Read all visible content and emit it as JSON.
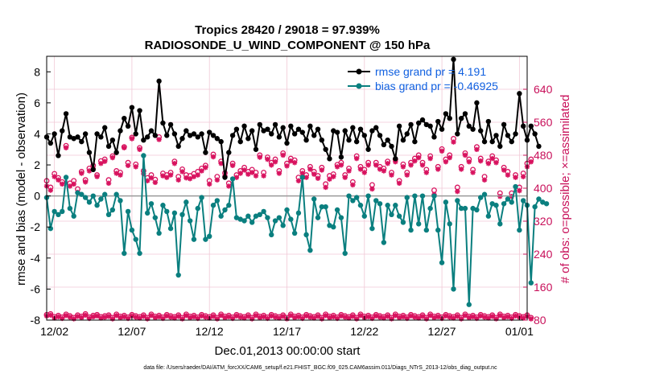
{
  "chart_data": {
    "type": "line",
    "title": "Tropics 28420 / 29018 = 97.939%",
    "subtitle": "RADIOSONDE_U_WIND_COMPONENT @ 150 hPa",
    "xlabel": "Dec.01,2013 00:00:00 start",
    "ylabel": "rmse and bias (model - observation)",
    "ylabel_right": "# of obs: o=possible; ×=assimilated",
    "footer": "data file: /Users/raeder/DAI/ATM_forcXX/CAM6_setup/f.e21.FHIST_BGC.f09_025.CAM6assim.011/Diags_NTrS_2013-12/obs_diag_output.nc",
    "xlim": [
      0,
      124
    ],
    "ylim": [
      -8,
      9
    ],
    "ylim_right": [
      80,
      720
    ],
    "x_ticks": [
      2,
      22,
      42,
      62,
      82,
      102,
      122
    ],
    "x_tick_labels": [
      "12/02",
      "12/07",
      "12/12",
      "12/17",
      "12/22",
      "12/27",
      "01/01"
    ],
    "y_ticks": [
      -8,
      -6,
      -4,
      -2,
      0,
      2,
      4,
      6,
      8
    ],
    "y_tick_labels": [
      "-8",
      "-6",
      "-4",
      "-2",
      "0",
      "2",
      "4",
      "6",
      "8"
    ],
    "y_right_ticks": [
      80,
      160,
      240,
      320,
      400,
      480,
      560,
      640
    ],
    "y_right_tick_labels": [
      "80",
      "160",
      "240",
      "320",
      "400",
      "480",
      "560",
      "640"
    ],
    "grid": true,
    "legend_position": "top-right",
    "series": [
      {
        "name": "rmse grand pr = 4.191",
        "color": "#000000",
        "values": [
          3.8,
          3.4,
          4.0,
          2.6,
          4.2,
          5.3,
          3.8,
          3.7,
          3.8,
          3.5,
          4.0,
          2.8,
          1.7,
          4.0,
          3.8,
          4.4,
          3.2,
          3.6,
          2.8,
          4.2,
          5.0,
          4.5,
          5.7,
          4.0,
          5.5,
          3.6,
          3.8,
          4.2,
          3.9,
          7.4,
          4.7,
          3.9,
          4.6,
          4.0,
          3.2,
          3.7,
          4.2,
          3.9,
          4.0,
          3.8,
          4.0,
          2.8,
          4.1,
          3.9,
          3.7,
          3.5,
          1.2,
          2.8,
          3.9,
          4.3,
          3.5,
          4.5,
          3.7,
          4.2,
          3.0,
          4.6,
          4.2,
          4.3,
          4.0,
          4.6,
          3.8,
          4.4,
          3.4,
          4.5,
          4.0,
          4.3,
          4.1,
          3.6,
          4.5,
          3.9,
          4.3,
          3.6,
          3.0,
          2.4,
          4.2,
          4.1,
          2.5,
          4.2,
          3.6,
          4.4,
          3.5,
          4.3,
          3.9,
          3.0,
          4.2,
          4.4,
          3.9,
          3.3,
          3.6,
          3.2,
          2.4,
          4.5,
          3.6,
          4.0,
          4.6,
          3.5,
          4.7,
          4.9,
          4.6,
          4.5,
          3.8,
          4.8,
          4.3,
          5.3,
          5.0,
          8.8,
          4.0,
          5.0,
          5.3,
          4.5,
          4.3,
          6.0,
          4.2,
          3.5,
          4.8,
          3.5,
          3.9,
          3.2,
          4.6,
          3.9,
          3.5,
          4.0,
          6.6,
          4.5,
          3.6,
          4.5,
          4.0,
          3.2
        ]
      },
      {
        "name": "bias grand pr = -0.46925",
        "color": "#0a7f7f",
        "values": [
          -0.1,
          -2.1,
          -1.0,
          -1.2,
          -1.0,
          1.2,
          -0.8,
          -1.3,
          0.2,
          0.1,
          -0.1,
          -0.4,
          0.0,
          -0.6,
          -0.2,
          0.1,
          -1.2,
          -0.9,
          0.1,
          -0.3,
          -3.7,
          -1.0,
          -2.2,
          -2.8,
          -3.7,
          2.6,
          -1.1,
          -0.5,
          -1.4,
          -2.4,
          -0.6,
          -1.0,
          -2.1,
          -1.1,
          -5.1,
          -1.2,
          -0.4,
          -1.6,
          -2.8,
          -0.8,
          -0.1,
          -2.8,
          -2.6,
          -0.6,
          -0.3,
          -1.3,
          -0.9,
          -0.6,
          1.1,
          -1.4,
          -1.5,
          -1.6,
          -1.3,
          -1.7,
          -1.3,
          -1.2,
          -1.0,
          -1.4,
          -2.5,
          -1.6,
          -1.4,
          -1.9,
          -0.9,
          -1.5,
          -2.4,
          -1.1,
          1.2,
          -2.5,
          -3.5,
          -0.2,
          -1.4,
          -0.7,
          -0.7,
          -1.9,
          -2.0,
          -0.9,
          -1.4,
          -3.7,
          0.0,
          -0.3,
          -0.1,
          -0.6,
          -1.3,
          0.0,
          -2.1,
          -0.3,
          -0.5,
          -3.0,
          -0.6,
          -1.2,
          -0.6,
          -1.3,
          -1.7,
          -0.1,
          -2.2,
          0.0,
          -1.8,
          0.0,
          -2.2,
          -0.8,
          0.0,
          -2.2,
          -4.3,
          -0.4,
          -1.8,
          -6.0,
          -0.3,
          -0.8,
          -0.8,
          -7.0,
          -0.8,
          -0.9,
          -0.1,
          0.1,
          -1.3,
          -0.5,
          -0.6,
          -1.8,
          -0.5,
          -0.2,
          -0.4,
          0.6,
          -2.2,
          -0.3,
          -0.6,
          -5.6,
          -0.7,
          -0.2,
          -0.4,
          -0.5
        ]
      }
    ],
    "obs_possible": [
      418,
      402,
      435,
      425,
      415,
      503,
      412,
      418,
      398,
      440,
      420,
      448,
      455,
      432,
      466,
      470,
      420,
      478,
      442,
      438,
      500,
      462,
      523,
      458,
      498,
      442,
      425,
      432,
      421,
      524,
      436,
      432,
      438,
      465,
      428,
      446,
      432,
      430,
      435,
      440,
      448,
      455,
      418,
      482,
      428,
      465,
      437,
      412,
      460,
      432,
      442,
      450,
      440,
      445,
      438,
      480,
      438,
      475,
      462,
      470,
      442,
      485,
      460,
      472,
      468,
      426,
      442,
      432,
      452,
      440,
      430,
      450,
      410,
      430,
      434,
      457,
      462,
      432,
      448,
      415,
      478,
      452,
      445,
      462,
      408,
      462,
      452,
      448,
      465,
      438,
      470,
      418,
      458,
      438,
      462,
      472,
      480,
      462,
      445,
      478,
      395,
      452,
      495,
      470,
      480,
      520,
      402,
      452,
      485,
      470,
      445,
      500,
      472,
      428,
      465,
      478,
      468,
      388,
      450,
      440,
      388,
      432,
      402,
      436,
      460,
      470
    ],
    "obs_assimilated": [
      405,
      395,
      428,
      420,
      410,
      498,
      405,
      410,
      390,
      436,
      415,
      442,
      448,
      428,
      460,
      465,
      412,
      474,
      436,
      432,
      498,
      455,
      520,
      452,
      494,
      435,
      418,
      425,
      414,
      518,
      430,
      426,
      432,
      460,
      420,
      440,
      425,
      423,
      428,
      432,
      442,
      450,
      410,
      476,
      420,
      460,
      430,
      405,
      455,
      426,
      436,
      444,
      434,
      438,
      430,
      475,
      430,
      470,
      456,
      464,
      436,
      480,
      454,
      466,
      462,
      418,
      436,
      426,
      446,
      434,
      424,
      444,
      402,
      422,
      428,
      452,
      456,
      426,
      442,
      408,
      472,
      446,
      438,
      456,
      398,
      456,
      446,
      442,
      460,
      432,
      464,
      412,
      452,
      432,
      456,
      466,
      474,
      456,
      438,
      472,
      385,
      446,
      490,
      464,
      474,
      512,
      392,
      446,
      480,
      464,
      438,
      494,
      466,
      420,
      460,
      472,
      462,
      380,
      444,
      432,
      380,
      426,
      394,
      428,
      452,
      464
    ],
    "obs_low_possible": [
      93,
      95,
      88,
      91,
      87,
      94,
      90,
      86,
      92,
      89,
      95,
      87,
      91,
      93,
      88,
      90,
      92,
      86,
      94,
      89,
      91,
      87,
      93,
      90,
      88,
      92,
      86,
      94,
      89,
      91,
      87,
      93,
      90,
      88,
      92,
      86,
      94,
      89,
      91,
      87,
      93,
      90,
      88,
      92,
      86,
      94,
      89,
      91,
      87,
      93,
      90,
      88,
      92,
      86,
      94,
      89,
      91,
      87,
      93,
      90,
      88,
      92,
      86,
      94,
      89,
      91,
      87,
      93,
      90,
      88,
      92,
      86,
      94,
      89,
      91,
      87,
      93,
      90,
      88,
      92,
      86,
      94,
      89,
      91,
      87,
      93,
      90,
      88,
      92,
      86,
      94,
      89,
      91,
      87,
      93,
      90,
      88,
      92,
      86,
      94,
      89,
      91,
      87,
      93,
      90,
      88,
      92,
      86,
      94,
      89,
      91,
      87,
      93,
      90,
      88,
      92,
      86,
      94,
      89,
      91,
      87,
      93,
      90,
      88,
      92,
      86
    ]
  }
}
